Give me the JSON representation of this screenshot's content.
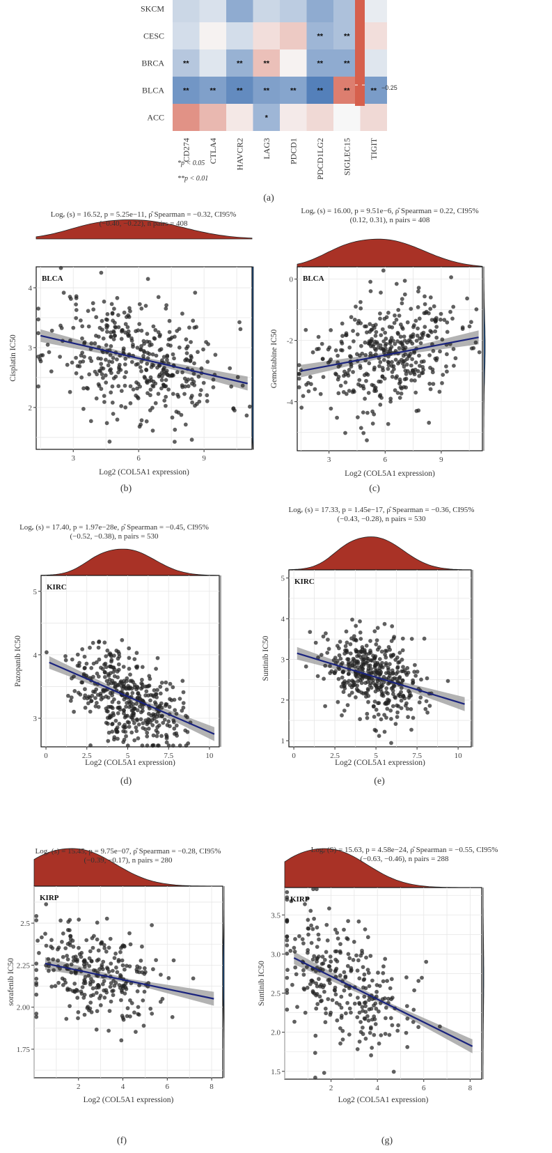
{
  "heatmap": {
    "rows": [
      "SKCM",
      "CESC",
      "BRCA",
      "BLCA",
      "ACC"
    ],
    "columns": [
      "CD274",
      "CTLA4",
      "HAVCR2",
      "LAG3",
      "PDCD1",
      "PDCD1LG2",
      "SIGLEC15",
      "TIGIT"
    ],
    "values": [
      [
        0.15,
        0.1,
        0.35,
        0.15,
        0.2,
        0.35,
        0.25,
        0.05
      ],
      [
        0.12,
        -0.02,
        0.12,
        -0.1,
        -0.18,
        0.3,
        0.25,
        -0.1
      ],
      [
        0.22,
        0.08,
        0.32,
        -0.22,
        -0.02,
        0.35,
        0.35,
        0.08
      ],
      [
        0.45,
        0.4,
        0.5,
        0.4,
        0.38,
        0.55,
        -0.48,
        0.42
      ],
      [
        -0.4,
        -0.25,
        -0.06,
        0.3,
        -0.05,
        -0.12,
        0.0,
        -0.12
      ]
    ],
    "stars": [
      [
        "",
        "",
        "",
        "",
        "",
        "",
        "",
        ""
      ],
      [
        "",
        "",
        "",
        "",
        "",
        "**",
        "**",
        ""
      ],
      [
        "**",
        "",
        "**",
        "**",
        "",
        "**",
        "**",
        ""
      ],
      [
        "**",
        "**",
        "**",
        "**",
        "**",
        "**",
        "**",
        "**"
      ],
      [
        "",
        "",
        "",
        "*",
        "",
        "",
        "",
        ""
      ]
    ],
    "colorbar_label": "−0.25",
    "note1": "*p < 0.05",
    "note2": "**p < 0.01",
    "caption": "(a)",
    "colors": {
      "negative": "#d6604d",
      "positive": "#4575b4",
      "neutral": "#f7f7f7"
    }
  },
  "chart_data": [
    {
      "type": "scatter",
      "caption": "(b)",
      "cancer": "BLCA",
      "ylabel": "Cisplatin IC50",
      "xlabel": "Log2 (COL5A1 expression)",
      "stat_line1": "Logₑ (s) = 16.52, p = 5.25e−11, ρ̂ Spearman = −0.32, CI95%",
      "stat_line2": "(−0.40, −0.22), n pairs = 408",
      "xlim": [
        1.3,
        11.2
      ],
      "ylim": [
        1.3,
        4.35
      ],
      "xticks": [
        3,
        6,
        9
      ],
      "yticks": [
        2,
        3,
        4
      ],
      "fit": {
        "x0": 1.5,
        "y0": 3.2,
        "x1": 11.0,
        "y1": 2.4
      },
      "n": 408,
      "cx": 6.0,
      "sx": 2.0,
      "cy": 2.8,
      "sy": 0.5,
      "seed": 11,
      "xdensity_peak": 6.0,
      "ydensity_peak": 2.95
    },
    {
      "type": "scatter",
      "caption": "(c)",
      "cancer": "BLCA",
      "ylabel": "Gemcitabine IC50",
      "xlabel": "Log2 (COL5A1 expression)",
      "stat_line1": "Logₑ (s) = 16.00, p = 9.51e−6, ρ̂ Spearman = 0.22, CI95%",
      "stat_line2": "(0.12, 0.31), n pairs = 408",
      "xlim": [
        1.3,
        11.2
      ],
      "ylim": [
        -5.6,
        0.4
      ],
      "xticks": [
        3,
        6,
        9
      ],
      "yticks": [
        -4,
        -2,
        0
      ],
      "fit": {
        "x0": 1.5,
        "y0": -3.0,
        "x1": 11.0,
        "y1": -1.9
      },
      "n": 408,
      "cx": 6.0,
      "sx": 2.0,
      "cy": -2.5,
      "sy": 0.9,
      "seed": 23,
      "xdensity_peak": 6.0,
      "ydensity_peak": -2.2
    },
    {
      "type": "scatter",
      "caption": "(d)",
      "cancer": "KIRC",
      "ylabel": "Pazopanib IC50",
      "xlabel": "Log2 (COL5A1 expression)",
      "stat_line1": "Logₑ (s) = 17.40, p = 1.97e−28e, ρ̂ Spearman = −0.45, CI95%",
      "stat_line2": "(−0.52, −0.38), n pairs = 530",
      "xlim": [
        -0.3,
        10.6
      ],
      "ylim": [
        2.55,
        5.25
      ],
      "xticks": [
        0.0,
        2.5,
        5.0,
        7.5,
        10.0
      ],
      "yticks": [
        3,
        4,
        5
      ],
      "fit": {
        "x0": 0.2,
        "y0": 3.88,
        "x1": 10.3,
        "y1": 2.75
      },
      "n": 530,
      "cx": 5.0,
      "sx": 1.6,
      "cy": 3.3,
      "sy": 0.35,
      "seed": 37,
      "xdensity_peak": 5.0,
      "ydensity_peak": 3.3
    },
    {
      "type": "scatter",
      "caption": "(e)",
      "cancer": "KIRC",
      "ylabel": "Suntinib IC50",
      "xlabel": "Log2 (COL5A1 expression)",
      "stat_line1": "Logₑ (s) = 17.33, p = 1.45e−17, ρ̂ Spearman = −0.36, CI95%",
      "stat_line2": "(−0.43, −0.28), n pairs = 530",
      "xlim": [
        -0.3,
        10.8
      ],
      "ylim": [
        0.85,
        5.2
      ],
      "xticks": [
        0.0,
        2.5,
        5.0,
        7.5,
        10.0
      ],
      "yticks": [
        1,
        2,
        3,
        4,
        5
      ],
      "fit": {
        "x0": 0.2,
        "y0": 3.15,
        "x1": 10.4,
        "y1": 1.9
      },
      "n": 530,
      "cx": 5.0,
      "sx": 1.6,
      "cy": 2.55,
      "sy": 0.5,
      "seed": 53,
      "xdensity_peak": 5.0,
      "ydensity_peak": 2.5
    },
    {
      "type": "scatter",
      "caption": "(f)",
      "cancer": "KIRP",
      "ylabel": "sorafenib IC50",
      "xlabel": "Log2 (COL5A1 expression)",
      "stat_line1": "Logₑ (s) = 15.45, p = 9.75e−07, ρ̂ Spearman = −0.28, CI95%",
      "stat_line2": "(−0.39, −0.17), n pairs = 280",
      "xlim": [
        0.0,
        8.5
      ],
      "ylim": [
        1.58,
        2.72
      ],
      "xticks": [
        2,
        4,
        6,
        8
      ],
      "yticks": [
        1.75,
        2.0,
        2.25,
        2.5
      ],
      "fit": {
        "x0": 0.5,
        "y0": 2.26,
        "x1": 8.1,
        "y1": 2.05
      },
      "n": 280,
      "cx": 2.8,
      "sx": 1.6,
      "cy": 2.2,
      "sy": 0.15,
      "seed": 71,
      "xdensity_peak": 2.0,
      "ydensity_peak": 2.2
    },
    {
      "type": "scatter",
      "caption": "(g)",
      "cancer": "KIRP",
      "ylabel": "Suntinib IC50",
      "xlabel": "Log2 (COL5A1 expression)",
      "stat_line1": "Logₑ (S) = 15.63, p = 4.58e−24, ρ̂ Spearman = −0.55, CI95%",
      "stat_line2": "(−0.63, −0.46), n pairs = 288",
      "xlim": [
        0.0,
        8.5
      ],
      "ylim": [
        1.4,
        3.85
      ],
      "xticks": [
        2,
        4,
        6,
        8
      ],
      "yticks": [
        1.5,
        2.0,
        2.5,
        3.0,
        3.5
      ],
      "fit": {
        "x0": 0.4,
        "y0": 2.95,
        "x1": 8.1,
        "y1": 1.82
      },
      "n": 288,
      "cx": 2.6,
      "sx": 1.5,
      "cy": 2.55,
      "sy": 0.42,
      "seed": 89,
      "xdensity_peak": 2.0,
      "ydensity_peak": 2.7
    }
  ]
}
